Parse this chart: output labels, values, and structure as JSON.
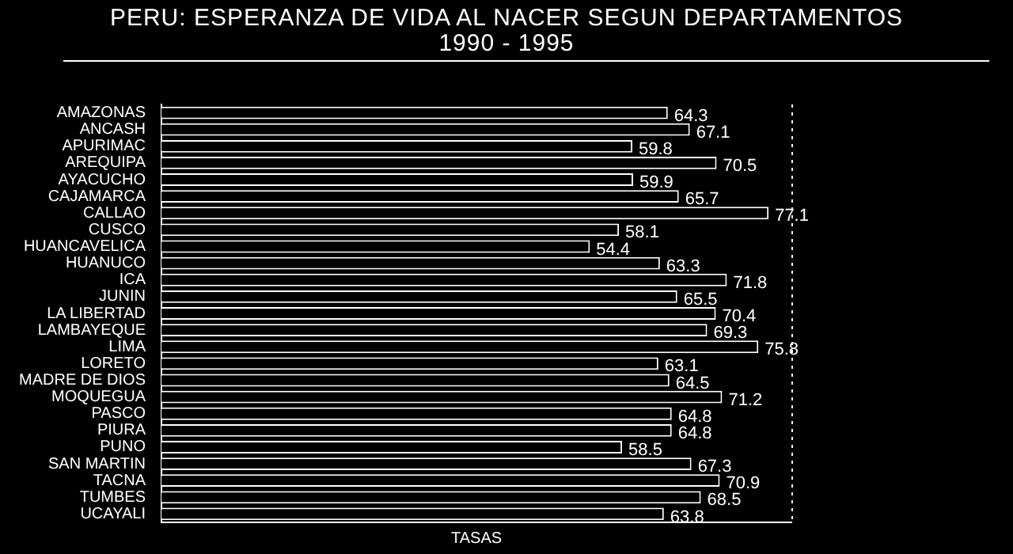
{
  "chart_data": {
    "type": "bar",
    "orientation": "horizontal",
    "title": "PERU: ESPERANZA DE VIDA AL NACER SEGUN DEPARTAMENTOS",
    "subtitle": "1990 - 1995",
    "xlabel": "TASAS",
    "categories": [
      "AMAZONAS",
      "ANCASH",
      "APURIMAC",
      "AREQUIPA",
      "AYACUCHO",
      "CAJAMARCA",
      "CALLAO",
      "CUSCO",
      "HUANCAVELICA",
      "HUANUCO",
      "ICA",
      "JUNIN",
      "LA LIBERTAD",
      "LAMBAYEQUE",
      "LIMA",
      "LORETO",
      "MADRE DE DIOS",
      "MOQUEGUA",
      "PASCO",
      "PIURA",
      "PUNO",
      "SAN MARTIN",
      "TACNA",
      "TUMBES",
      "UCAYALI"
    ],
    "values": [
      64.3,
      67.1,
      59.8,
      70.5,
      59.9,
      65.7,
      77.1,
      58.1,
      54.4,
      63.3,
      71.8,
      65.5,
      70.4,
      69.3,
      75.8,
      63.1,
      64.5,
      71.2,
      64.8,
      64.8,
      58.5,
      67.3,
      70.9,
      68.5,
      63.8
    ],
    "color": "#ffffff",
    "xlim": [
      0,
      80
    ],
    "tick_labels": "y",
    "data_labels": true,
    "legend": false,
    "grid": false
  }
}
